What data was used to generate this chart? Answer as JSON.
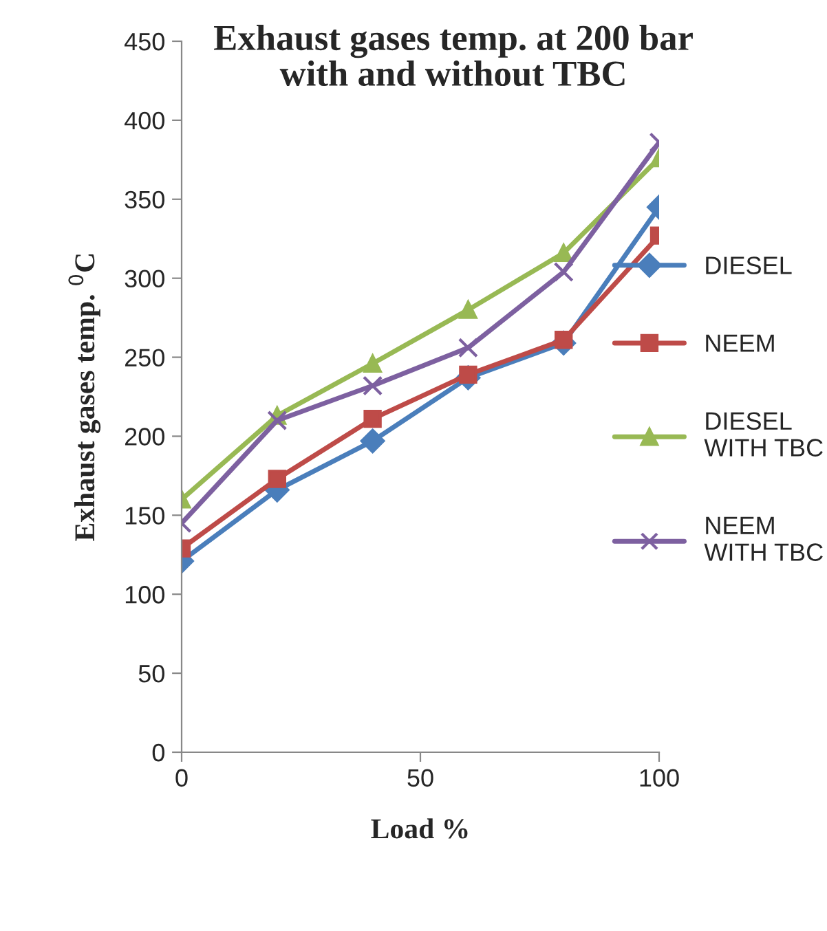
{
  "chart_data": {
    "type": "line",
    "title": "Exhaust gases temp. at 200 bar\nwith and without TBC",
    "xlabel": "Load %",
    "ylabel": "Exhaust gases temp. $^{0}$C",
    "x": [
      0,
      20,
      40,
      60,
      80,
      100
    ],
    "series": [
      {
        "name": "DIESEL",
        "color": "#4a7ebb",
        "marker": "diamond",
        "values": [
          121,
          166,
          197,
          237,
          259,
          345
        ]
      },
      {
        "name": "NEEM",
        "color": "#be4b48",
        "marker": "square",
        "values": [
          129,
          173,
          211,
          239,
          261,
          327
        ]
      },
      {
        "name": "DIESEL\nWITH TBC",
        "color": "#98b954",
        "marker": "triangle",
        "values": [
          160,
          213,
          246,
          280,
          316,
          376
        ]
      },
      {
        "name": "NEEM\nWITH TBC",
        "color": "#7d60a0",
        "marker": "cross",
        "values": [
          145,
          210,
          232,
          256,
          304,
          386
        ]
      }
    ],
    "xlim": [
      0,
      100
    ],
    "xticks": [
      0,
      50,
      100
    ],
    "ylim": [
      0,
      450
    ],
    "yticks": [
      0,
      50,
      100,
      150,
      200,
      250,
      300,
      350,
      400,
      450
    ],
    "grid": false,
    "legend": "right",
    "line_style": "solid"
  }
}
